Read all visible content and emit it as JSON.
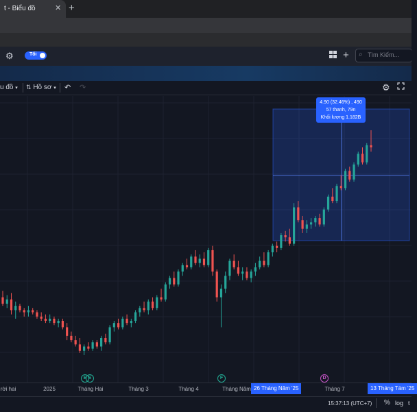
{
  "browser": {
    "tab_title": "t - Biểu đồ",
    "tab_close": "✕",
    "new_tab": "+"
  },
  "header": {
    "theme_label": "Tối",
    "search_placeholder": "Tìm Kiếm..."
  },
  "toolbar": {
    "chart_label": "u đồ",
    "profile_label": "Hồ sơ",
    "undo_icon": "undo-icon",
    "redo_icon": "redo-icon"
  },
  "measure": {
    "line1": "4.90 (32.46%) , 490",
    "line2": "57 thanh, 79n",
    "line3": "Khối lượng 1.182B"
  },
  "time_axis": {
    "labels": [
      "rời hai",
      "2025",
      "Tháng Hai",
      "Tháng 3",
      "Tháng 4",
      "Tháng Năm",
      "Tháng 7"
    ],
    "highlight_start": "26 Tháng Năm '25",
    "highlight_end": "13 Tháng Tám '25"
  },
  "events": [
    {
      "letter": "E",
      "color": "#22ab94"
    },
    {
      "letter": "E",
      "color": "#22ab94"
    },
    {
      "letter": "F",
      "color": "#22ab94"
    },
    {
      "letter": "D",
      "color": "#c855c8"
    }
  ],
  "status": {
    "clock": "15:37:13 (UTC+7)",
    "percent": "%",
    "log": "log",
    "auto": "t"
  },
  "colors": {
    "up": "#26a69a",
    "down": "#ef5350",
    "accent": "#2962ff",
    "background": "#131722"
  },
  "chart_data": {
    "type": "candlestick",
    "note_axis": "y axis not printed; values in relative price units",
    "candles": [
      [
        10.6,
        10.9,
        10.2,
        10.3
      ],
      [
        10.3,
        10.7,
        10.1,
        10.5
      ],
      [
        10.5,
        10.8,
        9.8,
        10.0
      ],
      [
        10.0,
        10.4,
        9.6,
        10.2
      ],
      [
        10.2,
        10.3,
        9.9,
        10.0
      ],
      [
        10.0,
        10.1,
        9.7,
        9.9
      ],
      [
        9.9,
        10.2,
        9.7,
        10.0
      ],
      [
        10.0,
        10.1,
        9.8,
        9.9
      ],
      [
        9.9,
        10.0,
        9.6,
        9.7
      ],
      [
        9.7,
        9.9,
        9.5,
        9.6
      ],
      [
        9.6,
        9.8,
        9.4,
        9.5
      ],
      [
        9.5,
        9.8,
        9.4,
        9.6
      ],
      [
        9.6,
        9.7,
        9.3,
        9.4
      ],
      [
        9.4,
        9.6,
        9.2,
        9.5
      ],
      [
        9.5,
        9.6,
        9.1,
        9.2
      ],
      [
        9.2,
        9.4,
        8.6,
        8.8
      ],
      [
        8.8,
        9.0,
        8.5,
        8.6
      ],
      [
        8.6,
        8.8,
        8.3,
        8.4
      ],
      [
        8.4,
        8.7,
        8.0,
        8.1
      ],
      [
        8.1,
        8.4,
        7.9,
        8.3
      ],
      [
        8.3,
        8.5,
        8.1,
        8.2
      ],
      [
        8.2,
        8.6,
        8.1,
        8.5
      ],
      [
        8.5,
        8.6,
        8.2,
        8.3
      ],
      [
        8.3,
        8.8,
        8.1,
        8.7
      ],
      [
        8.7,
        8.9,
        8.4,
        8.5
      ],
      [
        8.5,
        9.3,
        8.4,
        9.2
      ],
      [
        9.2,
        9.5,
        9.0,
        9.4
      ],
      [
        9.4,
        9.6,
        9.1,
        9.2
      ],
      [
        9.2,
        9.7,
        9.1,
        9.6
      ],
      [
        9.6,
        9.8,
        9.3,
        9.4
      ],
      [
        9.4,
        9.6,
        9.2,
        9.5
      ],
      [
        9.5,
        10.0,
        9.4,
        9.9
      ],
      [
        9.9,
        10.2,
        9.7,
        10.1
      ],
      [
        10.1,
        10.4,
        9.9,
        10.0
      ],
      [
        10.0,
        10.5,
        9.8,
        10.4
      ],
      [
        10.4,
        10.6,
        10.0,
        10.1
      ],
      [
        10.1,
        10.7,
        10.0,
        10.6
      ],
      [
        10.6,
        11.0,
        10.4,
        10.5
      ],
      [
        10.5,
        11.3,
        10.4,
        11.2
      ],
      [
        11.2,
        11.6,
        11.0,
        11.5
      ],
      [
        11.5,
        11.8,
        11.1,
        11.2
      ],
      [
        11.2,
        11.9,
        11.1,
        11.8
      ],
      [
        11.8,
        12.2,
        11.6,
        12.1
      ],
      [
        12.1,
        12.4,
        11.9,
        12.0
      ],
      [
        12.0,
        12.6,
        11.9,
        12.5
      ],
      [
        12.5,
        12.8,
        12.1,
        12.2
      ],
      [
        12.2,
        12.6,
        12.0,
        12.4
      ],
      [
        12.4,
        12.7,
        12.0,
        12.1
      ],
      [
        12.1,
        12.9,
        12.0,
        12.8
      ],
      [
        12.8,
        13.0,
        11.6,
        11.8
      ],
      [
        11.8,
        11.9,
        10.4,
        10.6
      ],
      [
        10.6,
        11.2,
        9.2,
        11.0
      ],
      [
        11.0,
        11.8,
        10.8,
        11.6
      ],
      [
        11.6,
        12.4,
        11.4,
        12.3
      ],
      [
        12.3,
        12.6,
        11.9,
        12.0
      ],
      [
        12.0,
        12.3,
        11.6,
        11.7
      ],
      [
        11.7,
        12.0,
        11.4,
        11.8
      ],
      [
        11.8,
        12.0,
        11.4,
        11.5
      ],
      [
        11.5,
        11.9,
        11.3,
        11.8
      ],
      [
        11.8,
        12.2,
        11.6,
        12.0
      ],
      [
        12.0,
        12.5,
        11.9,
        12.3
      ],
      [
        12.3,
        12.7,
        12.0,
        12.1
      ],
      [
        12.1,
        12.8,
        12.0,
        12.7
      ],
      [
        12.7,
        13.1,
        12.5,
        13.0
      ],
      [
        13.0,
        13.2,
        12.7,
        12.9
      ],
      [
        12.9,
        13.6,
        12.8,
        13.5
      ],
      [
        13.5,
        13.7,
        13.2,
        13.4
      ],
      [
        13.4,
        13.8,
        13.0,
        13.1
      ],
      [
        13.1,
        15.0,
        13.0,
        14.8
      ],
      [
        14.8,
        15.1,
        14.1,
        14.2
      ],
      [
        14.2,
        14.4,
        13.6,
        13.8
      ],
      [
        13.8,
        14.2,
        13.6,
        14.0
      ],
      [
        14.0,
        14.3,
        13.8,
        14.1
      ],
      [
        14.1,
        14.4,
        13.9,
        14.3
      ],
      [
        14.3,
        14.5,
        13.9,
        14.0
      ],
      [
        14.0,
        14.8,
        13.9,
        14.7
      ],
      [
        14.7,
        15.4,
        14.6,
        15.3
      ],
      [
        15.3,
        15.7,
        15.0,
        15.1
      ],
      [
        15.1,
        15.9,
        15.0,
        15.8
      ],
      [
        15.8,
        16.3,
        15.6,
        15.7
      ],
      [
        15.7,
        16.6,
        15.6,
        16.5
      ],
      [
        16.5,
        16.7,
        16.0,
        16.1
      ],
      [
        16.1,
        16.9,
        16.0,
        16.8
      ],
      [
        16.8,
        17.4,
        16.7,
        17.3
      ],
      [
        17.3,
        17.6,
        16.8,
        16.9
      ],
      [
        16.9,
        17.8,
        16.8,
        17.7
      ],
      [
        17.7,
        18.4,
        17.4,
        17.6
      ]
    ]
  }
}
